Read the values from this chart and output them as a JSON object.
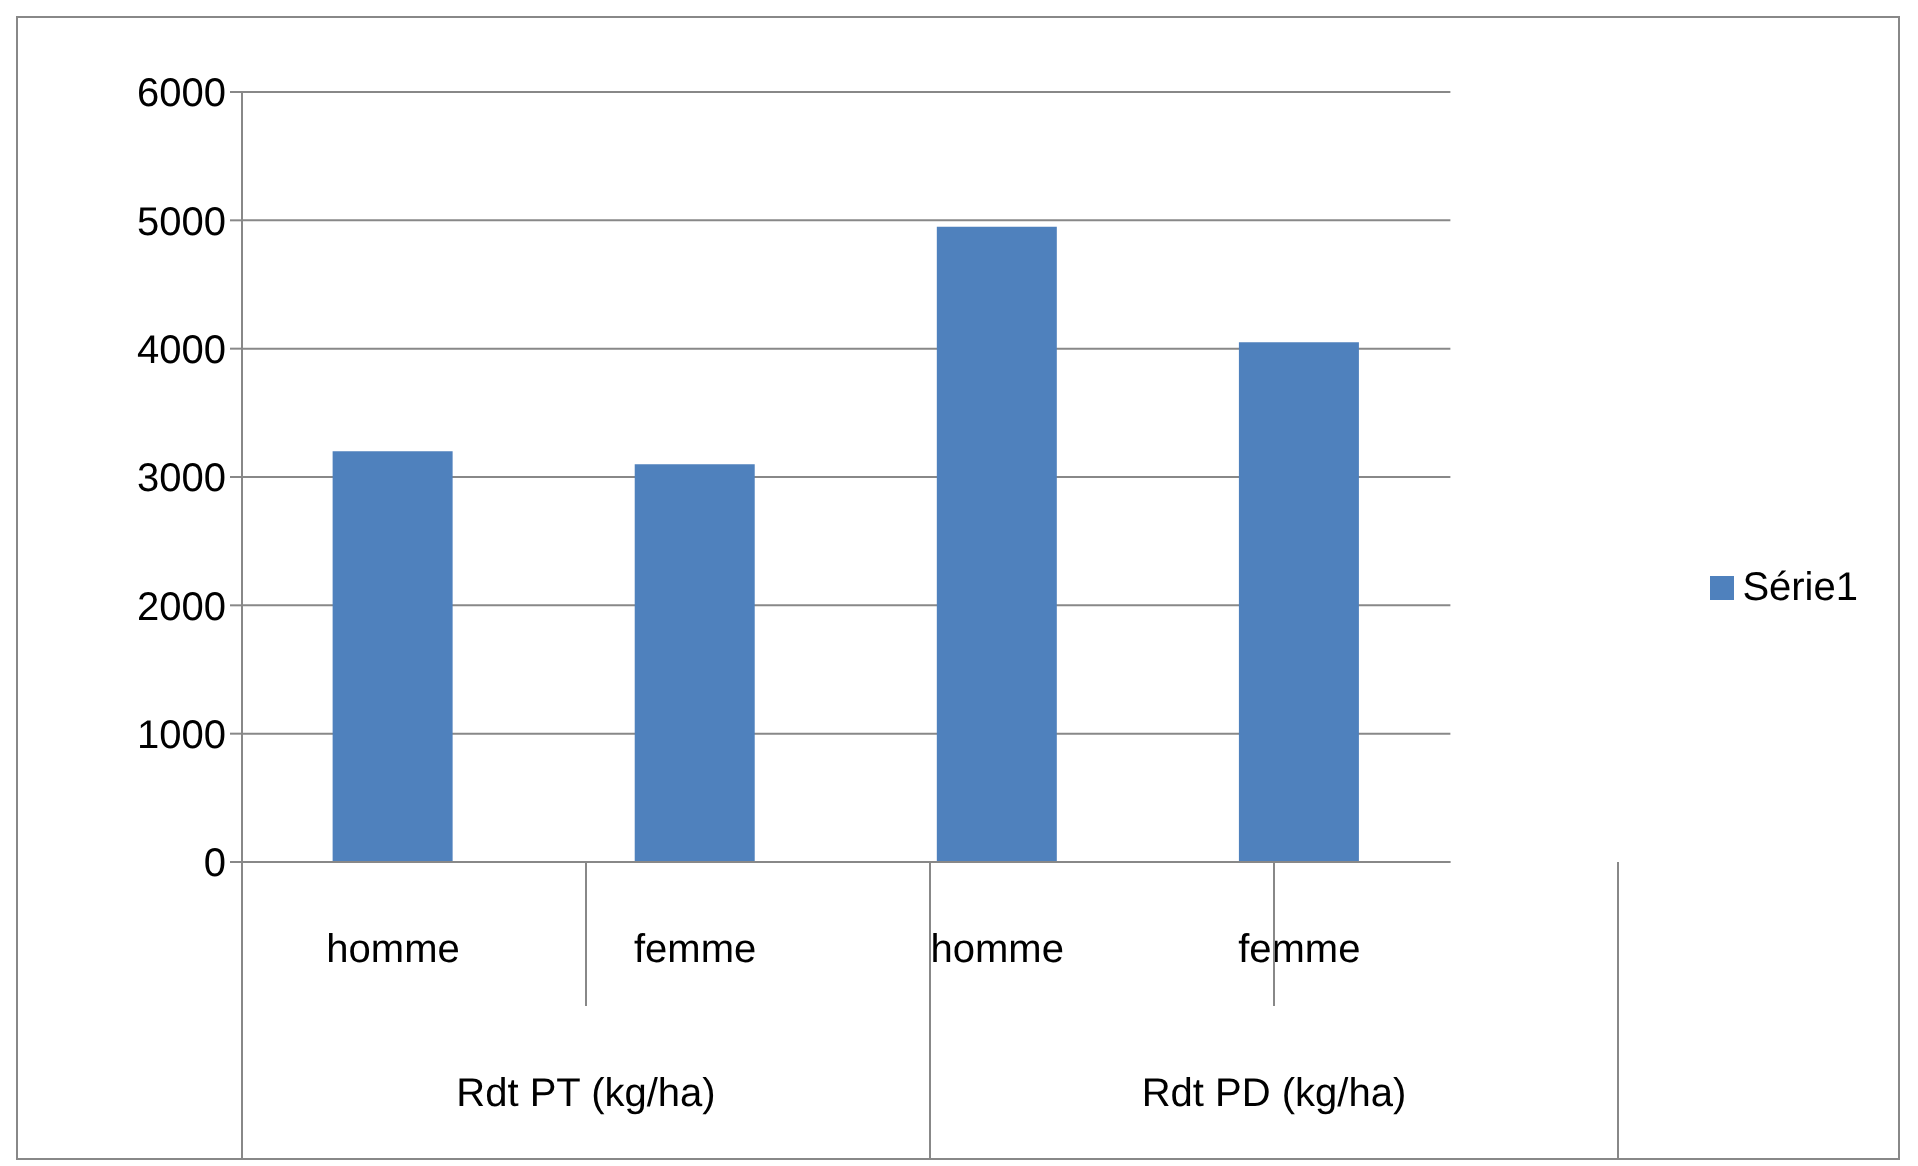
{
  "chart_data": {
    "type": "bar",
    "categories": [
      "homme",
      "femme",
      "homme",
      "femme"
    ],
    "series": [
      {
        "name": "Série1",
        "color": "#4f81bd",
        "values": [
          3200,
          3100,
          4950,
          4050
        ]
      }
    ],
    "ylim": [
      0,
      6000
    ],
    "yticks": [
      0,
      1000,
      2000,
      3000,
      4000,
      5000,
      6000
    ],
    "grid": "y",
    "legend": "right",
    "annotations": [
      "Rdt PT (kg/ha)",
      "Rdt PD (kg/ha)"
    ]
  }
}
